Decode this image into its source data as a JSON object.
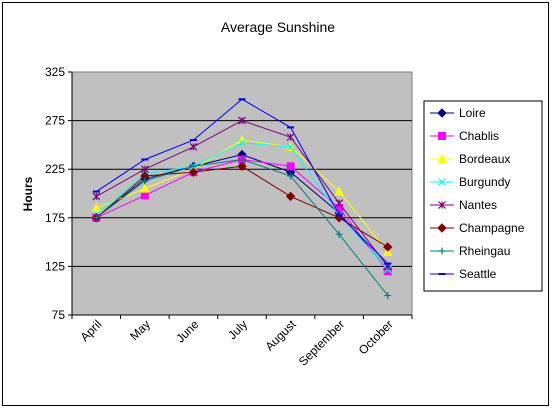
{
  "chart_data": {
    "type": "line",
    "title": "Average Sunshine",
    "xlabel": "",
    "ylabel": "Hours",
    "ylim": [
      75,
      325
    ],
    "yticks": [
      75,
      125,
      175,
      225,
      275,
      325
    ],
    "grid": "horizontal",
    "legend_position": "right",
    "categories": [
      "April",
      "May",
      "June",
      "July",
      "August",
      "September",
      "October"
    ],
    "series": [
      {
        "name": "Loire",
        "color": "#000080",
        "marker": "diamond",
        "values": [
          175,
          215,
          228,
          240,
          222,
          180,
          122
        ]
      },
      {
        "name": "Chablis",
        "color": "#ff00ff",
        "marker": "square",
        "values": [
          175,
          198,
          222,
          235,
          228,
          185,
          120
        ]
      },
      {
        "name": "Bordeaux",
        "color": "#ffff00",
        "marker": "triangle",
        "values": [
          185,
          205,
          225,
          255,
          248,
          202,
          140
        ]
      },
      {
        "name": "Burgundy",
        "color": "#00ffff",
        "marker": "x",
        "values": [
          178,
          220,
          228,
          252,
          248,
          178,
          122
        ]
      },
      {
        "name": "Nantes",
        "color": "#800080",
        "marker": "star",
        "values": [
          197,
          225,
          248,
          275,
          258,
          190,
          125
        ]
      },
      {
        "name": "Champagne",
        "color": "#800000",
        "marker": "diamond",
        "values": [
          175,
          218,
          222,
          228,
          197,
          175,
          145
        ]
      },
      {
        "name": "Rheingau",
        "color": "#008080",
        "marker": "plus",
        "values": [
          175,
          213,
          228,
          235,
          218,
          158,
          95
        ]
      },
      {
        "name": "Seattle",
        "color": "#0000ff",
        "marker": "dash",
        "values": [
          202,
          235,
          255,
          297,
          268,
          178,
          128
        ]
      }
    ]
  }
}
